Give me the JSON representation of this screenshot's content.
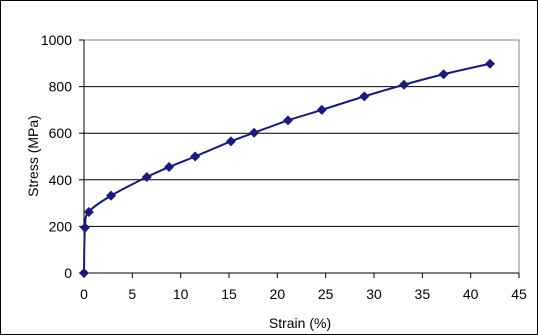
{
  "chart_data": {
    "type": "scatter",
    "title": "",
    "xlabel": "Strain  (%)",
    "ylabel": "Stress (MPa)",
    "xlim": [
      0,
      45
    ],
    "ylim": [
      0,
      1000
    ],
    "x_ticks": [
      "0",
      "5",
      "10",
      "15",
      "20",
      "25",
      "30",
      "35",
      "40",
      "45"
    ],
    "y_ticks": [
      "0",
      "200",
      "400",
      "600",
      "800",
      "1000"
    ],
    "grid": "horizontal",
    "legend": "none",
    "series": [
      {
        "color": "#1a1a7a",
        "marker": "diamond",
        "line": "smooth",
        "x": [
          0.0,
          0.1,
          0.5,
          2.8,
          6.5,
          8.8,
          11.5,
          15.2,
          17.6,
          21.1,
          24.6,
          29.0,
          33.1,
          37.2,
          42.0
        ],
        "y": [
          0,
          195,
          262,
          332,
          412,
          455,
          500,
          565,
          602,
          655,
          700,
          758,
          808,
          853,
          898
        ]
      }
    ]
  }
}
